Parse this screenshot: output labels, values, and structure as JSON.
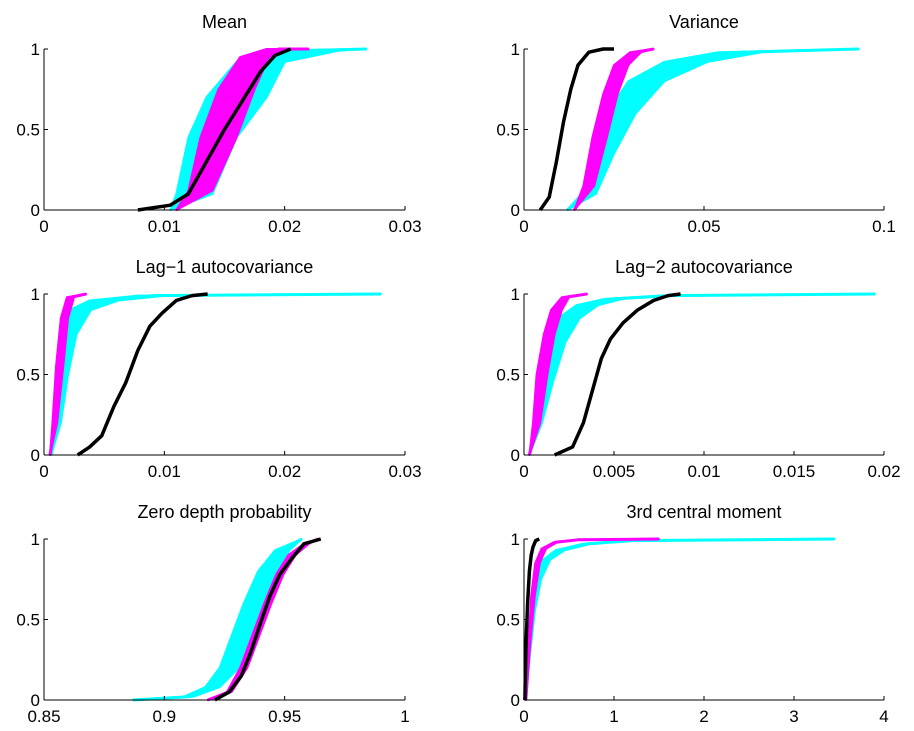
{
  "chart_data": [
    {
      "type": "line",
      "title": "Mean",
      "xlim": [
        0,
        0.03
      ],
      "ylim": [
        0,
        1
      ],
      "xticks": [
        "0",
        "0.01",
        "0.02",
        "0.03"
      ],
      "yticks": [
        "0",
        "0.5",
        "1"
      ],
      "series": [
        {
          "color": "#00ffff",
          "x": [
            0.0105,
            0.0125,
            0.014,
            0.016,
            0.018,
            0.0215,
            0.0268
          ],
          "y": [
            0.0,
            0.1,
            0.45,
            0.7,
            0.92,
            0.99,
            1.0
          ],
          "band": [
            0.0,
            0.0015,
            0.002,
            0.0025,
            0.002,
            0.003,
            0.0
          ]
        },
        {
          "color": "#ff00ff",
          "x": [
            0.011,
            0.013,
            0.0145,
            0.016,
            0.0175,
            0.0195,
            0.022
          ],
          "y": [
            0.0,
            0.12,
            0.45,
            0.75,
            0.95,
            1.0,
            1.0
          ],
          "band": [
            0.0,
            0.001,
            0.0015,
            0.0015,
            0.0012,
            0.001,
            0.0
          ]
        },
        {
          "color": "#000000",
          "x": [
            0.0078,
            0.0105,
            0.012,
            0.0135,
            0.015,
            0.0165,
            0.018,
            0.0192,
            0.0205
          ],
          "y": [
            0.0,
            0.03,
            0.1,
            0.3,
            0.5,
            0.68,
            0.86,
            0.96,
            1.0
          ]
        }
      ]
    },
    {
      "type": "line",
      "title": "Variance",
      "xlim": [
        0,
        0.1
      ],
      "ylim": [
        0,
        1
      ],
      "xticks": [
        "0",
        "0.05",
        "0.1"
      ],
      "yticks": [
        "0",
        "0.5",
        "1"
      ],
      "series": [
        {
          "color": "#00ffff",
          "x": [
            0.012,
            0.018,
            0.022,
            0.027,
            0.034,
            0.045,
            0.06,
            0.093
          ],
          "y": [
            0.0,
            0.1,
            0.35,
            0.6,
            0.8,
            0.92,
            0.98,
            1.0
          ],
          "band": [
            0.0,
            0.002,
            0.003,
            0.004,
            0.005,
            0.006,
            0.006,
            0.0
          ]
        },
        {
          "color": "#ff00ff",
          "x": [
            0.014,
            0.018,
            0.021,
            0.024,
            0.027,
            0.031,
            0.036
          ],
          "y": [
            0.0,
            0.15,
            0.45,
            0.72,
            0.9,
            0.98,
            1.0
          ],
          "band": [
            0.0,
            0.0015,
            0.002,
            0.002,
            0.002,
            0.0015,
            0.0
          ]
        },
        {
          "color": "#000000",
          "x": [
            0.0045,
            0.007,
            0.009,
            0.011,
            0.013,
            0.015,
            0.018,
            0.022,
            0.025
          ],
          "y": [
            0.0,
            0.08,
            0.3,
            0.55,
            0.75,
            0.9,
            0.98,
            1.0,
            1.0
          ]
        }
      ]
    },
    {
      "type": "line",
      "title": "Lag−1 autocovariance",
      "xlim": [
        0,
        0.03
      ],
      "ylim": [
        0,
        1
      ],
      "xticks": [
        "0",
        "0.01",
        "0.02",
        "0.03"
      ],
      "yticks": [
        "0",
        "0.5",
        "1"
      ],
      "series": [
        {
          "color": "#00ffff",
          "x": [
            0.0006,
            0.0011,
            0.0015,
            0.002,
            0.003,
            0.005,
            0.009,
            0.028
          ],
          "y": [
            0.0,
            0.2,
            0.5,
            0.75,
            0.9,
            0.96,
            0.99,
            1.0
          ],
          "band": [
            0.0,
            0.0003,
            0.0005,
            0.0007,
            0.0009,
            0.0012,
            0.0012,
            0.0
          ]
        },
        {
          "color": "#ff00ff",
          "x": [
            0.0005,
            0.0009,
            0.0013,
            0.0017,
            0.0022,
            0.0035
          ],
          "y": [
            0.0,
            0.2,
            0.55,
            0.85,
            0.98,
            1.0
          ],
          "band": [
            0.0,
            0.0002,
            0.0003,
            0.0003,
            0.0003,
            0.0
          ]
        },
        {
          "color": "#000000",
          "x": [
            0.0028,
            0.0038,
            0.0048,
            0.0058,
            0.0068,
            0.0078,
            0.0088,
            0.0098,
            0.011,
            0.0123,
            0.0136
          ],
          "y": [
            0.0,
            0.05,
            0.12,
            0.3,
            0.45,
            0.65,
            0.8,
            0.88,
            0.96,
            0.99,
            1.0
          ]
        }
      ]
    },
    {
      "type": "line",
      "title": "Lag−2 autocovariance",
      "xlim": [
        0,
        0.02
      ],
      "ylim": [
        0,
        1
      ],
      "xticks": [
        "0",
        "0.005",
        "0.01",
        "0.015",
        "0.02"
      ],
      "yticks": [
        "0",
        "0.5",
        "1"
      ],
      "series": [
        {
          "color": "#00ffff",
          "x": [
            0.0003,
            0.0008,
            0.0012,
            0.0018,
            0.0025,
            0.0035,
            0.005,
            0.008,
            0.0195
          ],
          "y": [
            0.0,
            0.2,
            0.45,
            0.7,
            0.85,
            0.93,
            0.97,
            0.99,
            1.0
          ],
          "band": [
            0.0,
            0.0002,
            0.0004,
            0.0005,
            0.0006,
            0.0006,
            0.0005,
            0.0004,
            0.0
          ]
        },
        {
          "color": "#ff00ff",
          "x": [
            0.0003,
            0.0007,
            0.001,
            0.0014,
            0.0018,
            0.0023,
            0.0035
          ],
          "y": [
            0.0,
            0.2,
            0.5,
            0.75,
            0.9,
            0.98,
            1.0
          ],
          "band": [
            0.0,
            0.0002,
            0.0003,
            0.0003,
            0.0003,
            0.0002,
            0.0
          ]
        },
        {
          "color": "#000000",
          "x": [
            0.0017,
            0.0027,
            0.0033,
            0.0038,
            0.0043,
            0.0048,
            0.0055,
            0.0063,
            0.0072,
            0.008,
            0.0087
          ],
          "y": [
            0.0,
            0.05,
            0.2,
            0.4,
            0.6,
            0.72,
            0.82,
            0.9,
            0.96,
            0.99,
            1.0
          ]
        }
      ]
    },
    {
      "type": "line",
      "title": "Zero depth probability",
      "xlim": [
        0.85,
        1
      ],
      "ylim": [
        0,
        1
      ],
      "xticks": [
        "0.85",
        "0.9",
        "0.95",
        "1"
      ],
      "yticks": [
        "0",
        "0.5",
        "1"
      ],
      "series": [
        {
          "color": "#00ffff",
          "x": [
            0.887,
            0.91,
            0.92,
            0.927,
            0.932,
            0.937,
            0.943,
            0.949,
            0.957
          ],
          "y": [
            0.0,
            0.02,
            0.08,
            0.2,
            0.4,
            0.6,
            0.8,
            0.93,
            1.0
          ],
          "band": [
            0.0,
            0.002,
            0.003,
            0.004,
            0.004,
            0.004,
            0.004,
            0.003,
            0.0
          ]
        },
        {
          "color": "#ff00ff",
          "x": [
            0.918,
            0.927,
            0.933,
            0.938,
            0.943,
            0.948,
            0.953,
            0.959,
            0.964
          ],
          "y": [
            0.0,
            0.05,
            0.2,
            0.4,
            0.6,
            0.78,
            0.9,
            0.97,
            1.0
          ],
          "band": [
            0.0,
            0.001,
            0.0015,
            0.0015,
            0.0015,
            0.0015,
            0.0015,
            0.001,
            0.0
          ]
        },
        {
          "color": "#000000",
          "x": [
            0.921,
            0.927,
            0.932,
            0.936,
            0.94,
            0.944,
            0.948,
            0.953,
            0.958,
            0.965
          ],
          "y": [
            0.0,
            0.05,
            0.15,
            0.3,
            0.48,
            0.65,
            0.78,
            0.88,
            0.97,
            1.0
          ]
        }
      ]
    },
    {
      "type": "line",
      "title": "3rd central moment",
      "xlim": [
        0,
        4
      ],
      "ylim": [
        0,
        1
      ],
      "xticks": [
        "0",
        "1",
        "2",
        "3",
        "4"
      ],
      "yticks": [
        "0",
        "0.5",
        "1"
      ],
      "series": [
        {
          "color": "#00ffff",
          "x": [
            0.02,
            0.06,
            0.1,
            0.16,
            0.25,
            0.4,
            0.7,
            1.2,
            3.45
          ],
          "y": [
            0.0,
            0.3,
            0.55,
            0.75,
            0.87,
            0.93,
            0.97,
            0.99,
            1.0
          ],
          "band": [
            0.0,
            0.01,
            0.02,
            0.03,
            0.04,
            0.05,
            0.05,
            0.05,
            0.0
          ]
        },
        {
          "color": "#ff00ff",
          "x": [
            0.02,
            0.06,
            0.1,
            0.15,
            0.22,
            0.35,
            0.6,
            1.5
          ],
          "y": [
            0.0,
            0.35,
            0.65,
            0.85,
            0.94,
            0.98,
            0.995,
            1.0
          ],
          "band": [
            0.0,
            0.01,
            0.02,
            0.025,
            0.025,
            0.02,
            0.015,
            0.0
          ]
        },
        {
          "color": "#000000",
          "x": [
            0.01,
            0.02,
            0.04,
            0.06,
            0.08,
            0.1,
            0.13,
            0.17
          ],
          "y": [
            0.0,
            0.3,
            0.6,
            0.8,
            0.9,
            0.95,
            0.99,
            1.0
          ]
        }
      ]
    }
  ]
}
